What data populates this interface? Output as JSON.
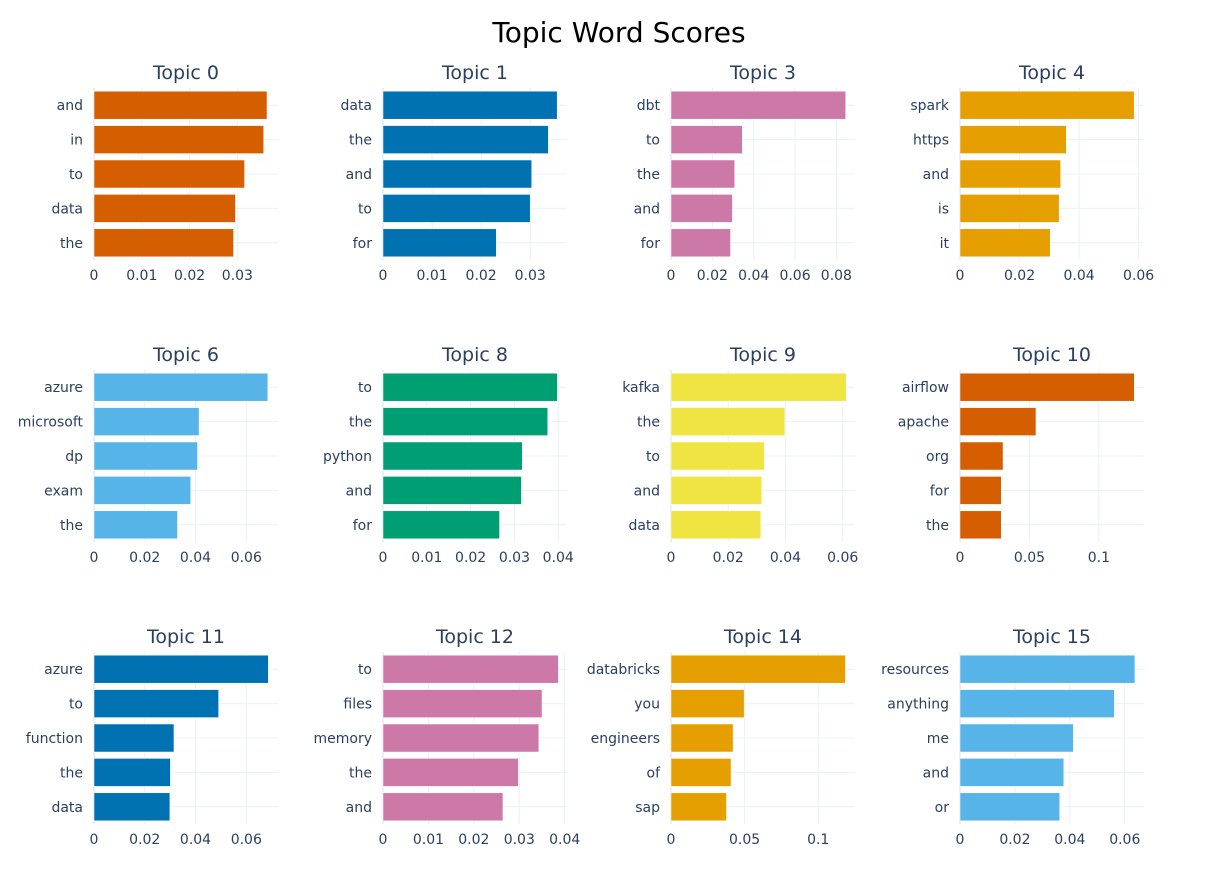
{
  "chart_data": {
    "type": "bar",
    "orientation": "horizontal",
    "title": "Topic Word Scores",
    "grid": true,
    "panels": [
      {
        "title": "Topic 0",
        "color": "#D55E00",
        "words": [
          "and",
          "in",
          "to",
          "data",
          "the"
        ],
        "values": [
          0.0362,
          0.0355,
          0.0315,
          0.0296,
          0.0292
        ],
        "xmax": 0.0385,
        "ticks": [
          0,
          0.01,
          0.02,
          0.03
        ],
        "tick_labels": [
          "0",
          "0.01",
          "0.02",
          "0.03"
        ]
      },
      {
        "title": "Topic 1",
        "color": "#0072B2",
        "words": [
          "data",
          "the",
          "and",
          "to",
          "for"
        ],
        "values": [
          0.0355,
          0.0337,
          0.0303,
          0.03,
          0.0231
        ],
        "xmax": 0.0375,
        "ticks": [
          0,
          0.01,
          0.02,
          0.03
        ],
        "tick_labels": [
          "0",
          "0.01",
          "0.02",
          "0.03"
        ]
      },
      {
        "title": "Topic 3",
        "color": "#CC79A7",
        "words": [
          "dbt",
          "to",
          "the",
          "and",
          "for"
        ],
        "values": [
          0.0845,
          0.0345,
          0.0308,
          0.0297,
          0.0288
        ],
        "xmax": 0.089,
        "ticks": [
          0,
          0.02,
          0.04,
          0.06,
          0.08
        ],
        "tick_labels": [
          "0",
          "0.02",
          "0.04",
          "0.06",
          "0.08"
        ]
      },
      {
        "title": "Topic 4",
        "color": "#E69F00",
        "words": [
          "spark",
          "https",
          "and",
          "is",
          "it"
        ],
        "values": [
          0.0585,
          0.0357,
          0.0338,
          0.0333,
          0.0303
        ],
        "xmax": 0.0618,
        "ticks": [
          0,
          0.02,
          0.04,
          0.06
        ],
        "tick_labels": [
          "0",
          "0.02",
          "0.04",
          "0.06"
        ]
      },
      {
        "title": "Topic 6",
        "color": "#56B4E9",
        "words": [
          "azure",
          "microsoft",
          "dp",
          "exam",
          "the"
        ],
        "values": [
          0.0685,
          0.0414,
          0.0408,
          0.0381,
          0.0329
        ],
        "xmax": 0.0725,
        "ticks": [
          0,
          0.02,
          0.04,
          0.06
        ],
        "tick_labels": [
          "0",
          "0.02",
          "0.04",
          "0.06"
        ]
      },
      {
        "title": "Topic 8",
        "color": "#009E73",
        "words": [
          "to",
          "the",
          "python",
          "and",
          "for"
        ],
        "values": [
          0.0398,
          0.0376,
          0.0318,
          0.0316,
          0.0266
        ],
        "xmax": 0.042,
        "ticks": [
          0,
          0.01,
          0.02,
          0.03,
          0.04
        ],
        "tick_labels": [
          "0",
          "0.01",
          "0.02",
          "0.03",
          "0.04"
        ]
      },
      {
        "title": "Topic 9",
        "color": "#F0E442",
        "words": [
          "kafka",
          "the",
          "to",
          "and",
          "data"
        ],
        "values": [
          0.0612,
          0.0398,
          0.0326,
          0.0317,
          0.0314
        ],
        "xmax": 0.0643,
        "ticks": [
          0,
          0.02,
          0.04,
          0.06
        ],
        "tick_labels": [
          "0",
          "0.02",
          "0.04",
          "0.06"
        ]
      },
      {
        "title": "Topic 10",
        "color": "#D55E00",
        "words": [
          "airflow",
          "apache",
          "org",
          "for",
          "the"
        ],
        "values": [
          0.1255,
          0.0547,
          0.031,
          0.0297,
          0.0297
        ],
        "xmax": 0.1325,
        "ticks": [
          0,
          0.05,
          0.1
        ],
        "tick_labels": [
          "0",
          "0.05",
          "0.1"
        ]
      },
      {
        "title": "Topic 11",
        "color": "#0072B2",
        "words": [
          "azure",
          "to",
          "function",
          "the",
          "data"
        ],
        "values": [
          0.0687,
          0.0491,
          0.0315,
          0.0301,
          0.0299
        ],
        "xmax": 0.0725,
        "ticks": [
          0,
          0.02,
          0.04,
          0.06
        ],
        "tick_labels": [
          "0",
          "0.02",
          "0.04",
          "0.06"
        ]
      },
      {
        "title": "Topic 12",
        "color": "#CC79A7",
        "words": [
          "to",
          "files",
          "memory",
          "the",
          "and"
        ],
        "values": [
          0.0386,
          0.035,
          0.0343,
          0.0298,
          0.0264
        ],
        "xmax": 0.0405,
        "ticks": [
          0,
          0.01,
          0.02,
          0.03,
          0.04
        ],
        "tick_labels": [
          "0",
          "0.01",
          "0.02",
          "0.03",
          "0.04"
        ]
      },
      {
        "title": "Topic 14",
        "color": "#E69F00",
        "words": [
          "databricks",
          "you",
          "engineers",
          "of",
          "sap"
        ],
        "values": [
          0.1185,
          0.0497,
          0.0422,
          0.0408,
          0.0377
        ],
        "xmax": 0.125,
        "ticks": [
          0,
          0.05,
          0.1
        ],
        "tick_labels": [
          "0",
          "0.05",
          "0.1"
        ]
      },
      {
        "title": "Topic 15",
        "color": "#56B4E9",
        "words": [
          "resources",
          "anything",
          "me",
          "and",
          "or"
        ],
        "values": [
          0.0637,
          0.0562,
          0.0413,
          0.0378,
          0.0363
        ],
        "xmax": 0.067,
        "ticks": [
          0,
          0.02,
          0.04,
          0.06
        ],
        "tick_labels": [
          "0",
          "0.02",
          "0.04",
          "0.06"
        ]
      }
    ]
  }
}
